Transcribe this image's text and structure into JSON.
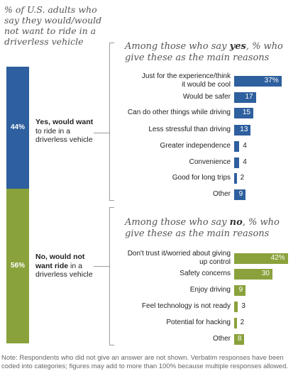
{
  "intro_title": "% of U.S. adults who say they would/would not want to ride in a driverless vehicle",
  "groups": [
    {
      "pct_label": "44%",
      "value": 44,
      "label_bold": "Yes, would want",
      "label_rest": "to ride in a driverless vehicle",
      "color": "#2e5f9e"
    },
    {
      "pct_label": "56%",
      "value": 56,
      "label_bold": "No, would not want ride",
      "label_rest": "in a driverless vehicle",
      "color": "#8aa23c"
    }
  ],
  "sections": [
    {
      "title_pre": "Among those who say ",
      "title_key": "yes",
      "title_post": ", % who give these as the main reasons"
    },
    {
      "title_pre": "Among those who say ",
      "title_key": "no",
      "title_post": ", % who give these as the main reasons"
    }
  ],
  "chart_data": [
    {
      "type": "bar",
      "orientation": "horizontal",
      "group": "yes",
      "categories": [
        "Just for the experience/think it would be cool",
        "Would be safer",
        "Can do other things while driving",
        "Less stressful than driving",
        "Greater independence",
        "Convenience",
        "Good for long trips",
        "Other"
      ],
      "values": [
        37,
        17,
        15,
        13,
        4,
        4,
        2,
        9
      ],
      "value_labels": [
        "37%",
        "17",
        "15",
        "13",
        "4",
        "4",
        "2",
        "9"
      ],
      "color": "#2e5f9e"
    },
    {
      "type": "bar",
      "orientation": "horizontal",
      "group": "no",
      "categories": [
        "Don't trust it/worried about giving up control",
        "Safety concerns",
        "Enjoy driving",
        "Feel technology is not ready",
        "Potential for hacking",
        "Other"
      ],
      "values": [
        42,
        30,
        9,
        3,
        2,
        8
      ],
      "value_labels": [
        "42%",
        "30",
        "9",
        "3",
        "2",
        "8"
      ],
      "color": "#8aa23c"
    }
  ],
  "note": "Note: Respondents who did not give an answer are not shown. Verbatim responses have been coded into categories; figures may add to more than 100% because multiple responses allowed."
}
